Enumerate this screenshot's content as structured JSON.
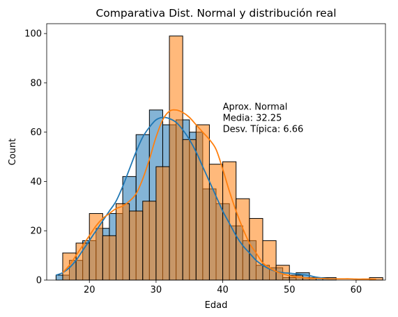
{
  "chart_data": {
    "type": "histogram",
    "title": "Comparativa Dist. Normal y distribución real",
    "xlabel": "Edad",
    "ylabel": "Count",
    "xlim": [
      13.6,
      64.4
    ],
    "ylim": [
      0,
      104
    ],
    "xticks": [
      20,
      30,
      40,
      50,
      60
    ],
    "yticks": [
      0,
      20,
      40,
      60,
      80,
      100
    ],
    "grid": false,
    "legend": "none",
    "annotation": {
      "lines": [
        "Aprox. Normal",
        "Media: 32.25",
        "Desv. Típica: 6.66"
      ],
      "x": 40,
      "y": 68
    },
    "series": [
      {
        "color": "#1f77b4",
        "bins": [
          {
            "x0": 15.0,
            "x1": 17.0,
            "count": 2
          },
          {
            "x0": 17.0,
            "x1": 19.0,
            "count": 8
          },
          {
            "x0": 19.0,
            "x1": 21.0,
            "count": 16
          },
          {
            "x0": 21.0,
            "x1": 23.0,
            "count": 21
          },
          {
            "x0": 23.0,
            "x1": 25.0,
            "count": 27
          },
          {
            "x0": 25.0,
            "x1": 27.0,
            "count": 42
          },
          {
            "x0": 27.0,
            "x1": 29.0,
            "count": 59
          },
          {
            "x0": 29.0,
            "x1": 31.0,
            "count": 69
          },
          {
            "x0": 31.0,
            "x1": 33.0,
            "count": 63
          },
          {
            "x0": 33.0,
            "x1": 35.0,
            "count": 65
          },
          {
            "x0": 35.0,
            "x1": 37.0,
            "count": 60
          },
          {
            "x0": 37.0,
            "x1": 39.0,
            "count": 37
          },
          {
            "x0": 39.0,
            "x1": 41.0,
            "count": 31
          },
          {
            "x0": 41.0,
            "x1": 43.0,
            "count": 22
          },
          {
            "x0": 43.0,
            "x1": 45.0,
            "count": 16
          },
          {
            "x0": 45.0,
            "x1": 47.0,
            "count": 6
          },
          {
            "x0": 47.0,
            "x1": 49.0,
            "count": 5
          },
          {
            "x0": 49.0,
            "x1": 51.0,
            "count": 1
          },
          {
            "x0": 51.0,
            "x1": 53.0,
            "count": 3
          },
          {
            "x0": 53.0,
            "x1": 55.0,
            "count": 1
          },
          {
            "x0": 55.0,
            "x1": 57.0,
            "count": 1
          }
        ],
        "kde": {
          "x": [
            15,
            16,
            17,
            18,
            19,
            20,
            21,
            22,
            23,
            24,
            25,
            26,
            27,
            28,
            29,
            30,
            31,
            32,
            33,
            34,
            35,
            36,
            37,
            38,
            39,
            40,
            41,
            42,
            43,
            44,
            45,
            46,
            47,
            48,
            49,
            50,
            51,
            52,
            53,
            54,
            55,
            56
          ],
          "y": [
            2,
            3,
            5,
            8,
            12,
            16,
            20,
            24,
            28,
            32,
            38,
            45,
            52,
            58,
            62,
            65,
            66,
            65.5,
            64,
            61,
            57,
            52,
            46,
            40,
            34,
            28,
            23,
            18,
            14,
            11,
            8,
            6,
            4.5,
            3.5,
            3,
            2.8,
            2.5,
            2.2,
            1.8,
            1.2,
            0.8,
            0.5
          ]
        }
      },
      {
        "color": "#ff7f0e",
        "bins": [
          {
            "x0": 16.0,
            "x1": 18.0,
            "count": 11
          },
          {
            "x0": 18.0,
            "x1": 20.0,
            "count": 15
          },
          {
            "x0": 20.0,
            "x1": 22.0,
            "count": 27
          },
          {
            "x0": 22.0,
            "x1": 24.0,
            "count": 18
          },
          {
            "x0": 24.0,
            "x1": 26.0,
            "count": 31
          },
          {
            "x0": 26.0,
            "x1": 28.0,
            "count": 28
          },
          {
            "x0": 28.0,
            "x1": 30.0,
            "count": 32
          },
          {
            "x0": 30.0,
            "x1": 32.0,
            "count": 46
          },
          {
            "x0": 32.0,
            "x1": 34.0,
            "count": 99
          },
          {
            "x0": 34.0,
            "x1": 36.0,
            "count": 57
          },
          {
            "x0": 36.0,
            "x1": 38.0,
            "count": 63
          },
          {
            "x0": 38.0,
            "x1": 40.0,
            "count": 47
          },
          {
            "x0": 40.0,
            "x1": 42.0,
            "count": 48
          },
          {
            "x0": 42.0,
            "x1": 44.0,
            "count": 33
          },
          {
            "x0": 44.0,
            "x1": 46.0,
            "count": 25
          },
          {
            "x0": 46.0,
            "x1": 48.0,
            "count": 16
          },
          {
            "x0": 48.0,
            "x1": 50.0,
            "count": 6
          },
          {
            "x0": 50.0,
            "x1": 52.0,
            "count": 2
          },
          {
            "x0": 52.0,
            "x1": 54.0,
            "count": 1
          },
          {
            "x0": 62.0,
            "x1": 64.0,
            "count": 1
          }
        ],
        "kde": {
          "x": [
            16,
            17,
            18,
            19,
            20,
            21,
            22,
            23,
            24,
            25,
            26,
            27,
            28,
            29,
            30,
            31,
            32,
            33,
            34,
            35,
            36,
            37,
            38,
            39,
            40,
            41,
            42,
            43,
            44,
            45,
            46,
            47,
            48,
            49,
            50,
            51,
            52,
            53,
            54,
            55,
            56,
            57,
            58,
            59,
            60,
            61,
            62,
            63
          ],
          "y": [
            3,
            6,
            10,
            14,
            18,
            22,
            25,
            27,
            29,
            30,
            32,
            35,
            41,
            49,
            58,
            65,
            68.5,
            69,
            68,
            66,
            63,
            60,
            57,
            53,
            45,
            36,
            28,
            21,
            15,
            11,
            7,
            5,
            3.5,
            2.5,
            1.8,
            1.3,
            1,
            0.8,
            0.7,
            0.6,
            0.5,
            0.5,
            0.5,
            0.5,
            0.4,
            0.4,
            0.4,
            0.3
          ]
        }
      }
    ]
  }
}
